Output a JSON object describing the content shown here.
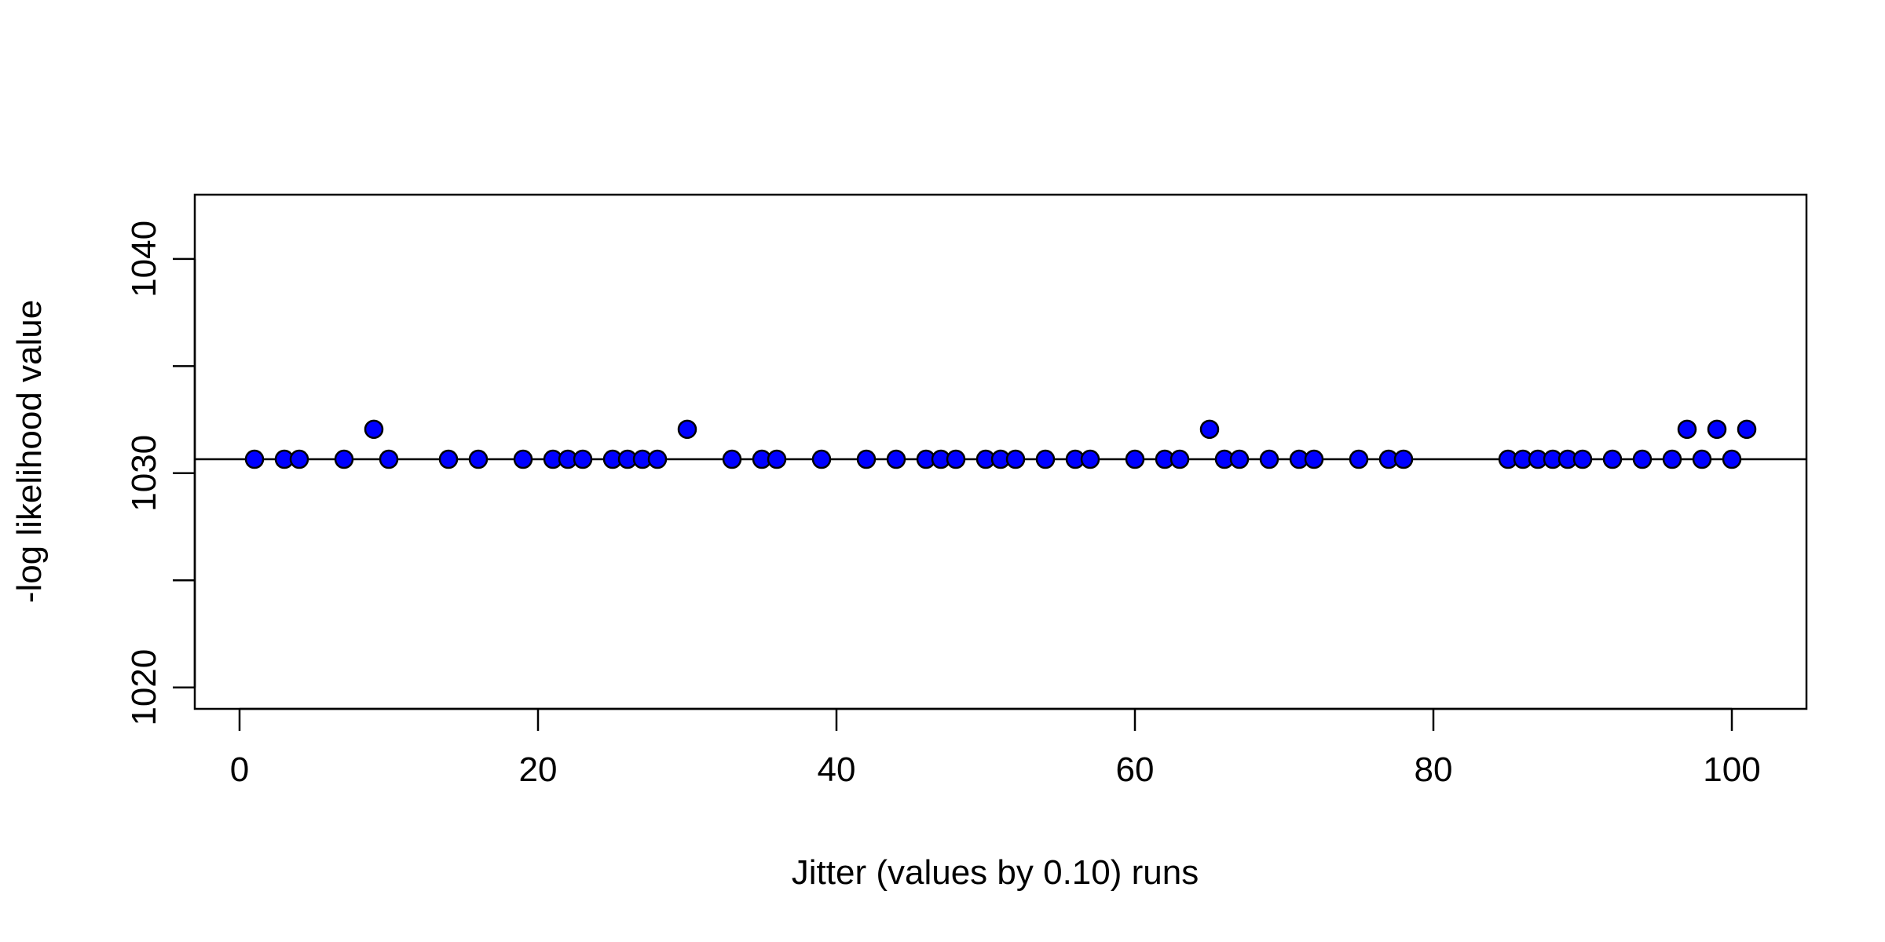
{
  "chart_data": {
    "type": "scatter",
    "title": "",
    "xlabel": "Jitter (values by 0.10) runs",
    "ylabel": "-log likelihood value",
    "xlim": [
      -3,
      105
    ],
    "ylim": [
      1019,
      1043
    ],
    "x_ticks": [
      0,
      20,
      40,
      60,
      80,
      100
    ],
    "y_ticks": [
      1020,
      1025,
      1030,
      1035,
      1040
    ],
    "y_tick_labels": [
      "1020",
      "",
      "1030",
      "",
      "1040"
    ],
    "reference_line": {
      "y": 1030.65,
      "color": "#000000"
    },
    "grid": false,
    "legend": "none",
    "point_fill": "#0000ff",
    "point_stroke": "#000000",
    "points": [
      {
        "x": 1,
        "y": 1030.65
      },
      {
        "x": 3,
        "y": 1030.65
      },
      {
        "x": 4,
        "y": 1030.65
      },
      {
        "x": 7,
        "y": 1030.65
      },
      {
        "x": 9,
        "y": 1032.05
      },
      {
        "x": 10,
        "y": 1030.65
      },
      {
        "x": 14,
        "y": 1030.65
      },
      {
        "x": 16,
        "y": 1030.65
      },
      {
        "x": 19,
        "y": 1030.65
      },
      {
        "x": 21,
        "y": 1030.65
      },
      {
        "x": 22,
        "y": 1030.65
      },
      {
        "x": 23,
        "y": 1030.65
      },
      {
        "x": 25,
        "y": 1030.65
      },
      {
        "x": 26,
        "y": 1030.65
      },
      {
        "x": 27,
        "y": 1030.65
      },
      {
        "x": 28,
        "y": 1030.65
      },
      {
        "x": 30,
        "y": 1032.05
      },
      {
        "x": 33,
        "y": 1030.65
      },
      {
        "x": 35,
        "y": 1030.65
      },
      {
        "x": 36,
        "y": 1030.65
      },
      {
        "x": 39,
        "y": 1030.65
      },
      {
        "x": 42,
        "y": 1030.65
      },
      {
        "x": 44,
        "y": 1030.65
      },
      {
        "x": 46,
        "y": 1030.65
      },
      {
        "x": 47,
        "y": 1030.65
      },
      {
        "x": 48,
        "y": 1030.65
      },
      {
        "x": 50,
        "y": 1030.65
      },
      {
        "x": 51,
        "y": 1030.65
      },
      {
        "x": 52,
        "y": 1030.65
      },
      {
        "x": 54,
        "y": 1030.65
      },
      {
        "x": 56,
        "y": 1030.65
      },
      {
        "x": 57,
        "y": 1030.65
      },
      {
        "x": 60,
        "y": 1030.65
      },
      {
        "x": 62,
        "y": 1030.65
      },
      {
        "x": 63,
        "y": 1030.65
      },
      {
        "x": 65,
        "y": 1032.05
      },
      {
        "x": 66,
        "y": 1030.65
      },
      {
        "x": 67,
        "y": 1030.65
      },
      {
        "x": 69,
        "y": 1030.65
      },
      {
        "x": 71,
        "y": 1030.65
      },
      {
        "x": 72,
        "y": 1030.65
      },
      {
        "x": 75,
        "y": 1030.65
      },
      {
        "x": 77,
        "y": 1030.65
      },
      {
        "x": 78,
        "y": 1030.65
      },
      {
        "x": 85,
        "y": 1030.65
      },
      {
        "x": 86,
        "y": 1030.65
      },
      {
        "x": 87,
        "y": 1030.65
      },
      {
        "x": 88,
        "y": 1030.65
      },
      {
        "x": 89,
        "y": 1030.65
      },
      {
        "x": 90,
        "y": 1030.65
      },
      {
        "x": 92,
        "y": 1030.65
      },
      {
        "x": 94,
        "y": 1030.65
      },
      {
        "x": 96,
        "y": 1030.65
      },
      {
        "x": 97,
        "y": 1032.05
      },
      {
        "x": 98,
        "y": 1030.65
      },
      {
        "x": 99,
        "y": 1032.05
      },
      {
        "x": 100,
        "y": 1030.65
      },
      {
        "x": 101,
        "y": 1032.05
      }
    ]
  }
}
